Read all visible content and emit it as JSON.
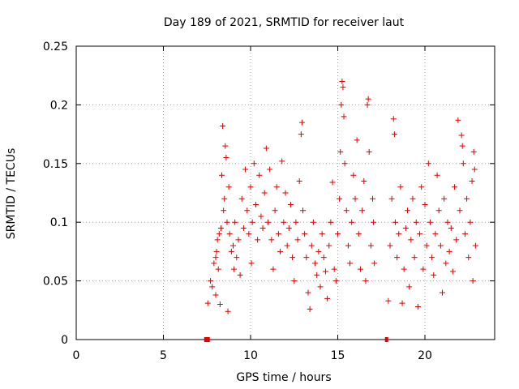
{
  "chart_data": {
    "type": "scatter",
    "title": "Day 189 of 2021, SRMTID for receiver laut",
    "xlabel": "GPS time / hours",
    "ylabel": "SRMTID / TECUs",
    "xlim": [
      0,
      24
    ],
    "ylim": [
      0,
      0.25
    ],
    "x_ticks": [
      "0",
      "5",
      "10",
      "15",
      "20"
    ],
    "x_tick_values": [
      0,
      5,
      10,
      15,
      20
    ],
    "y_ticks": [
      "0",
      "0.05",
      "0.1",
      "0.15",
      "0.2",
      "0.25"
    ],
    "y_tick_values": [
      0,
      0.05,
      0.1,
      0.15,
      0.2,
      0.25
    ],
    "grid": true,
    "marker": "+",
    "color": "#e00000",
    "gap_markers_x": [
      7.5,
      17.8
    ],
    "series": [
      {
        "values": [
          [
            7.55,
            0.031
          ],
          [
            7.7,
            0.05
          ],
          [
            7.8,
            0.045
          ],
          [
            7.9,
            0.065
          ],
          [
            8.0,
            0.07
          ],
          [
            8.0,
            0.038
          ],
          [
            8.05,
            0.075
          ],
          [
            8.1,
            0.085
          ],
          [
            8.15,
            0.06
          ],
          [
            8.2,
            0.09
          ],
          [
            8.25,
            0.03
          ],
          [
            8.3,
            0.095
          ],
          [
            8.35,
            0.14
          ],
          [
            8.4,
            0.182
          ],
          [
            8.45,
            0.11
          ],
          [
            8.5,
            0.12
          ],
          [
            8.55,
            0.165
          ],
          [
            8.6,
            0.155
          ],
          [
            8.65,
            0.1
          ],
          [
            8.7,
            0.024
          ],
          [
            8.75,
            0.13
          ],
          [
            8.8,
            0.09
          ],
          [
            8.9,
            0.075
          ],
          [
            9.0,
            0.08
          ],
          [
            9.05,
            0.06
          ],
          [
            9.1,
            0.1
          ],
          [
            9.2,
            0.07
          ],
          [
            9.3,
            0.085
          ],
          [
            9.4,
            0.055
          ],
          [
            9.5,
            0.12
          ],
          [
            9.6,
            0.095
          ],
          [
            9.7,
            0.145
          ],
          [
            9.8,
            0.11
          ],
          [
            9.9,
            0.09
          ],
          [
            10.0,
            0.13
          ],
          [
            10.05,
            0.065
          ],
          [
            10.1,
            0.1
          ],
          [
            10.2,
            0.15
          ],
          [
            10.3,
            0.115
          ],
          [
            10.4,
            0.085
          ],
          [
            10.5,
            0.14
          ],
          [
            10.6,
            0.105
          ],
          [
            10.7,
            0.095
          ],
          [
            10.8,
            0.125
          ],
          [
            10.9,
            0.163
          ],
          [
            11.0,
            0.1
          ],
          [
            11.1,
            0.145
          ],
          [
            11.2,
            0.085
          ],
          [
            11.3,
            0.06
          ],
          [
            11.4,
            0.11
          ],
          [
            11.5,
            0.13
          ],
          [
            11.6,
            0.09
          ],
          [
            11.7,
            0.075
          ],
          [
            11.8,
            0.152
          ],
          [
            11.9,
            0.1
          ],
          [
            12.0,
            0.125
          ],
          [
            12.1,
            0.08
          ],
          [
            12.2,
            0.095
          ],
          [
            12.3,
            0.115
          ],
          [
            12.4,
            0.07
          ],
          [
            12.5,
            0.05
          ],
          [
            12.6,
            0.1
          ],
          [
            12.7,
            0.085
          ],
          [
            12.8,
            0.135
          ],
          [
            12.9,
            0.175
          ],
          [
            12.95,
            0.185
          ],
          [
            13.0,
            0.11
          ],
          [
            13.1,
            0.09
          ],
          [
            13.2,
            0.07
          ],
          [
            13.3,
            0.04
          ],
          [
            13.4,
            0.026
          ],
          [
            13.5,
            0.08
          ],
          [
            13.6,
            0.1
          ],
          [
            13.7,
            0.065
          ],
          [
            13.8,
            0.055
          ],
          [
            13.9,
            0.075
          ],
          [
            14.0,
            0.045
          ],
          [
            14.1,
            0.09
          ],
          [
            14.2,
            0.07
          ],
          [
            14.3,
            0.058
          ],
          [
            14.4,
            0.035
          ],
          [
            14.5,
            0.08
          ],
          [
            14.6,
            0.1
          ],
          [
            14.7,
            0.134
          ],
          [
            14.8,
            0.06
          ],
          [
            14.9,
            0.05
          ],
          [
            15.0,
            0.09
          ],
          [
            15.1,
            0.12
          ],
          [
            15.15,
            0.16
          ],
          [
            15.2,
            0.2
          ],
          [
            15.25,
            0.22
          ],
          [
            15.3,
            0.215
          ],
          [
            15.35,
            0.19
          ],
          [
            15.4,
            0.15
          ],
          [
            15.5,
            0.11
          ],
          [
            15.6,
            0.08
          ],
          [
            15.7,
            0.065
          ],
          [
            15.8,
            0.1
          ],
          [
            15.9,
            0.14
          ],
          [
            16.0,
            0.12
          ],
          [
            16.1,
            0.17
          ],
          [
            16.2,
            0.09
          ],
          [
            16.3,
            0.06
          ],
          [
            16.4,
            0.11
          ],
          [
            16.5,
            0.135
          ],
          [
            16.6,
            0.05
          ],
          [
            16.7,
            0.2
          ],
          [
            16.75,
            0.205
          ],
          [
            16.8,
            0.16
          ],
          [
            16.9,
            0.08
          ],
          [
            17.0,
            0.12
          ],
          [
            17.05,
            0.1
          ],
          [
            17.1,
            0.065
          ],
          [
            17.9,
            0.033
          ],
          [
            18.0,
            0.08
          ],
          [
            18.1,
            0.12
          ],
          [
            18.2,
            0.188
          ],
          [
            18.25,
            0.175
          ],
          [
            18.3,
            0.1
          ],
          [
            18.4,
            0.07
          ],
          [
            18.5,
            0.09
          ],
          [
            18.6,
            0.13
          ],
          [
            18.7,
            0.031
          ],
          [
            18.8,
            0.06
          ],
          [
            18.9,
            0.095
          ],
          [
            19.0,
            0.11
          ],
          [
            19.1,
            0.045
          ],
          [
            19.2,
            0.085
          ],
          [
            19.3,
            0.12
          ],
          [
            19.4,
            0.07
          ],
          [
            19.5,
            0.1
          ],
          [
            19.6,
            0.028
          ],
          [
            19.7,
            0.09
          ],
          [
            19.8,
            0.13
          ],
          [
            19.9,
            0.06
          ],
          [
            20.0,
            0.115
          ],
          [
            20.1,
            0.08
          ],
          [
            20.2,
            0.15
          ],
          [
            20.3,
            0.1
          ],
          [
            20.4,
            0.07
          ],
          [
            20.5,
            0.055
          ],
          [
            20.6,
            0.09
          ],
          [
            20.7,
            0.14
          ],
          [
            20.8,
            0.11
          ],
          [
            20.9,
            0.08
          ],
          [
            21.0,
            0.04
          ],
          [
            21.1,
            0.12
          ],
          [
            21.2,
            0.065
          ],
          [
            21.3,
            0.1
          ],
          [
            21.4,
            0.075
          ],
          [
            21.5,
            0.095
          ],
          [
            21.6,
            0.058
          ],
          [
            21.7,
            0.13
          ],
          [
            21.8,
            0.085
          ],
          [
            21.9,
            0.187
          ],
          [
            22.0,
            0.11
          ],
          [
            22.1,
            0.174
          ],
          [
            22.15,
            0.165
          ],
          [
            22.2,
            0.15
          ],
          [
            22.3,
            0.09
          ],
          [
            22.4,
            0.12
          ],
          [
            22.5,
            0.07
          ],
          [
            22.6,
            0.1
          ],
          [
            22.7,
            0.135
          ],
          [
            22.75,
            0.05
          ],
          [
            22.8,
            0.16
          ],
          [
            22.85,
            0.145
          ],
          [
            22.9,
            0.08
          ]
        ]
      }
    ]
  }
}
